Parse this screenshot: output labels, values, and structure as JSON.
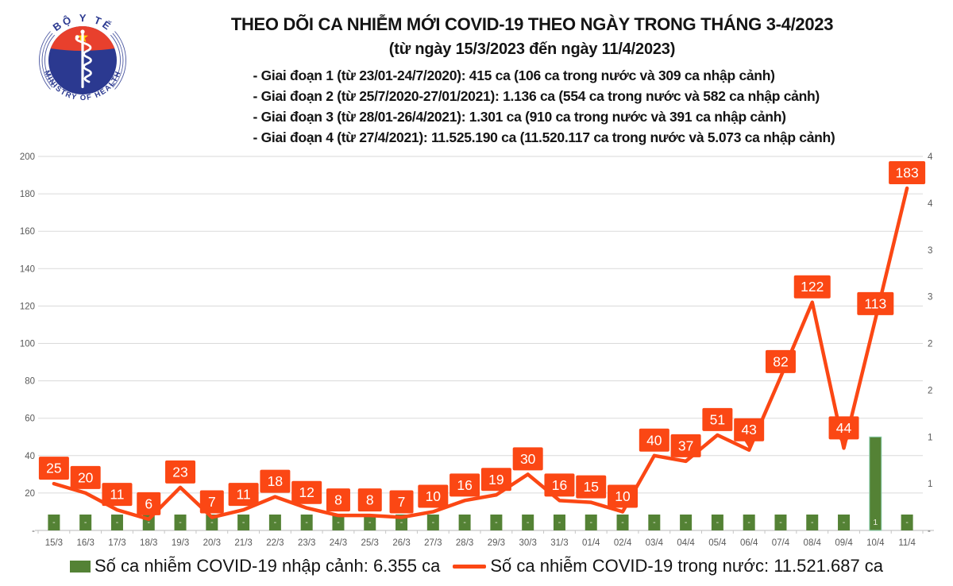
{
  "header": {
    "title_line1": "THEO DÕI CA NHIỄM MỚI COVID-19 THEO NGÀY TRONG THÁNG 3-4/2023",
    "title_line2": "(từ ngày 15/3/2023 đến ngày 11/4/2023)",
    "bullets": [
      "- Giai đoạn 1 (từ 23/01-24/7/2020): 415 ca (106 ca trong nước và 309 ca nhập cảnh)",
      "- Giai đoạn 2 (từ 25/7/2020-27/01/2021): 1.136 ca (554 ca trong nước và 582 ca nhập cảnh)",
      "- Giai đoạn 3 (từ 28/01-26/4/2021): 1.301 ca (910 ca trong nước và 391 ca nhập cảnh)",
      "- Giai đoạn 4 (từ 27/4/2021): 11.525.190 ca (11.520.117 ca trong nước và 5.073 ca nhập cảnh)"
    ]
  },
  "logo": {
    "top_text": "BỘ Y TẾ",
    "bottom_text": "MINISTRY OF HEALTH"
  },
  "legend": {
    "bar_label": "Số ca nhiễm COVID-19 nhập cảnh: 6.355 ca",
    "line_label": "Số ca nhiễm COVID-19 trong nước: 11.521.687 ca"
  },
  "chart_data": {
    "type": "line+bar",
    "title": "THEO DÕI CA NHIỄM MỚI COVID-19 THEO NGÀY TRONG THÁNG 3-4/2023",
    "subtitle": "(từ ngày 15/3/2023 đến ngày 11/4/2023)",
    "grid": true,
    "legend_position": "bottom",
    "categories": [
      "15/3",
      "16/3",
      "17/3",
      "18/3",
      "19/3",
      "20/3",
      "21/3",
      "22/3",
      "23/3",
      "24/3",
      "25/3",
      "26/3",
      "27/3",
      "28/3",
      "29/3",
      "30/3",
      "31/3",
      "01/4",
      "02/4",
      "03/4",
      "04/4",
      "05/4",
      "06/4",
      "07/4",
      "08/4",
      "09/4",
      "10/4",
      "11/4"
    ],
    "series": [
      {
        "name": "Số ca nhiễm COVID-19 trong nước",
        "type": "line",
        "axis": "left",
        "values": [
          25,
          20,
          11,
          6,
          23,
          7,
          11,
          18,
          12,
          8,
          8,
          7,
          10,
          16,
          19,
          30,
          16,
          15,
          10,
          40,
          37,
          51,
          43,
          82,
          122,
          44,
          113,
          183
        ]
      },
      {
        "name": "Số ca nhiễm COVID-19 nhập cảnh",
        "type": "bar",
        "axis": "right",
        "values": [
          0,
          0,
          0,
          0,
          0,
          0,
          0,
          0,
          0,
          0,
          0,
          0,
          0,
          0,
          0,
          0,
          0,
          0,
          0,
          0,
          0,
          0,
          0,
          0,
          0,
          0,
          1,
          0
        ],
        "labels": [
          "-",
          "-",
          "-",
          "-",
          "-",
          "-",
          "-",
          "-",
          "-",
          "-",
          "-",
          "-",
          "-",
          "-",
          "-",
          "-",
          "-",
          "-",
          "-",
          "-",
          "-",
          "-",
          "-",
          "-",
          "-",
          "-",
          "1",
          "-"
        ]
      }
    ],
    "left_axis": {
      "min": 0,
      "max": 200,
      "tick_labels": [
        "200",
        "180",
        "160",
        "140",
        "120",
        "100",
        "80",
        "60",
        "40",
        "20",
        "-"
      ]
    },
    "right_axis": {
      "min": 0,
      "max": 4,
      "tick_labels": [
        "4",
        "4",
        "3",
        "3",
        "2",
        "2",
        "1",
        "1",
        "-"
      ]
    },
    "callout_indices": [
      22,
      25
    ],
    "colors": {
      "accent": "#fb4714",
      "bar_green": "#548235",
      "grid": "#dadada",
      "axis": "#c6c6c6",
      "axis_text": "#595959",
      "label_text": "#ffffff",
      "logo_blue": "#2b3990",
      "logo_red": "#e8402d",
      "logo_star": "#ffd100"
    }
  }
}
